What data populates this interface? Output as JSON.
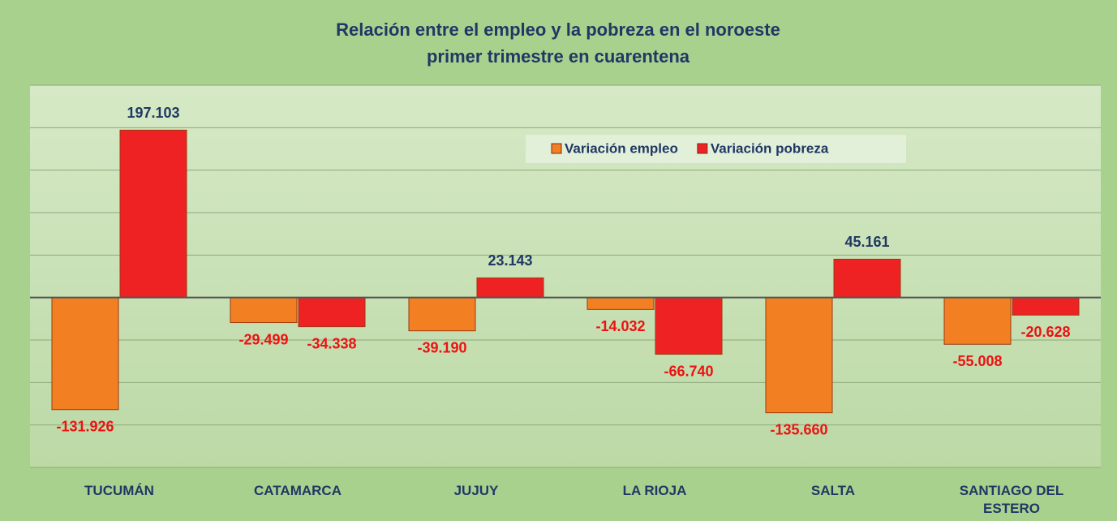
{
  "chart_data": {
    "type": "bar",
    "title": "Relación entre el empleo y la pobreza en el noroeste",
    "subtitle": "primer trimestre en cuarentena",
    "categories": [
      "TUCUMÁN",
      "CATAMARCA",
      "JUJUY",
      "LA RIOJA",
      "SALTA",
      "SANTIAGO DEL ESTERO"
    ],
    "series": [
      {
        "name": "Variación empleo",
        "color": "#f28023",
        "values": [
          -131926,
          -29499,
          -39190,
          -14032,
          -135660,
          -55008
        ],
        "value_labels": [
          "-131.926",
          "-29.499",
          "-39.190",
          "-14.032",
          "-135.660",
          "-55.008"
        ]
      },
      {
        "name": "Variación pobreza",
        "color": "#ee2222",
        "values": [
          197103,
          -34338,
          23143,
          -66740,
          45161,
          -20628
        ],
        "value_labels": [
          "197.103",
          "-34.338",
          "23.143",
          "-66.740",
          "45.161",
          "-20.628"
        ]
      }
    ],
    "ylim": [
      -200000,
      250000
    ],
    "yticks": [
      -200000,
      -150000,
      -100000,
      -50000,
      0,
      50000,
      100000,
      150000,
      200000,
      250000
    ],
    "grid": true,
    "legend": "top-right"
  }
}
